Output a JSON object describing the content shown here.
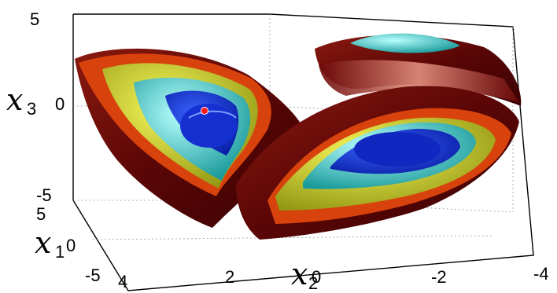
{
  "chart_data": {
    "type": "isosurface",
    "axes": {
      "x1": {
        "label_main": "x",
        "label_sub": "1",
        "ticks": [
          "5",
          "0",
          "-5"
        ]
      },
      "x2": {
        "label_main": "x",
        "label_sub": "2",
        "ticks": [
          "4",
          "2",
          "0",
          "-2",
          "-4"
        ]
      },
      "x3": {
        "label_main": "x",
        "label_sub": "3",
        "ticks": [
          "5",
          "0",
          "-5"
        ]
      }
    },
    "xlim": [
      4,
      -4
    ],
    "ylim": [
      -5,
      5
    ],
    "zlim": [
      -5,
      5
    ],
    "grid": true,
    "surface_colors": [
      "#0a2fd6",
      "#29c4c4",
      "#cfd21a",
      "#e04a0e",
      "#7a0e0e"
    ],
    "marker": {
      "color": "#ff1a1a",
      "x1": 0,
      "x2": 2.5,
      "x3": 0
    }
  }
}
